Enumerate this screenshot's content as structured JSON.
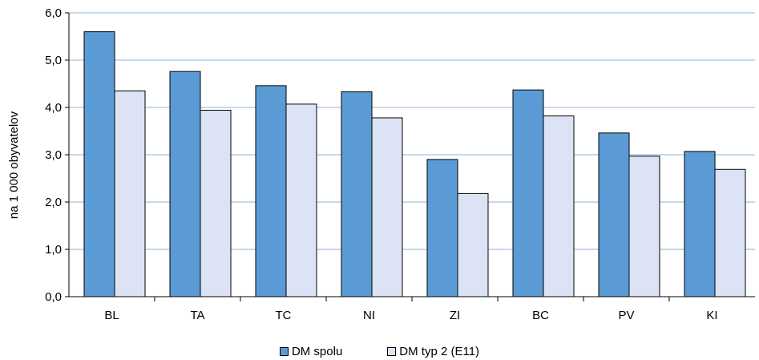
{
  "chart_data": {
    "type": "bar",
    "categories": [
      "BL",
      "TA",
      "TC",
      "NI",
      "ZI",
      "BC",
      "PV",
      "KI"
    ],
    "series": [
      {
        "name": "DM spolu",
        "values": [
          5.6,
          4.76,
          4.46,
          4.33,
          2.9,
          4.37,
          3.46,
          3.07
        ],
        "color": "#5B9BD5"
      },
      {
        "name": "DM typ 2 (E11)",
        "values": [
          4.35,
          3.94,
          4.07,
          3.78,
          2.18,
          3.82,
          2.97,
          2.69
        ],
        "color": "#DCE3F4"
      }
    ],
    "ylabel": "na 1 000 obyvatelov",
    "xlabel": "",
    "ylim": [
      0,
      6
    ],
    "yticks": [
      "0,0",
      "1,0",
      "2,0",
      "3,0",
      "4,0",
      "5,0",
      "6,0"
    ],
    "grid": true,
    "legend_position": "bottom"
  }
}
